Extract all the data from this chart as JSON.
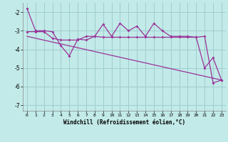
{
  "xlabel": "Windchill (Refroidissement éolien,°C)",
  "background_color": "#c2eae8",
  "grid_color": "#9ecece",
  "line_color": "#993399",
  "xlim": [
    -0.5,
    23.5
  ],
  "ylim": [
    -7.3,
    -1.5
  ],
  "yticks": [
    -7,
    -6,
    -5,
    -4,
    -3,
    -2
  ],
  "xticks": [
    0,
    1,
    2,
    3,
    4,
    5,
    6,
    7,
    8,
    9,
    10,
    11,
    12,
    13,
    14,
    15,
    16,
    17,
    18,
    19,
    20,
    21,
    22,
    23
  ],
  "line1_x": [
    0,
    1,
    2,
    3,
    4,
    5,
    6,
    7,
    8,
    9,
    10,
    11,
    12,
    13,
    14,
    15,
    16,
    17,
    18,
    19,
    20,
    21,
    22,
    23
  ],
  "line1_y": [
    -1.8,
    -3.0,
    -3.0,
    -3.05,
    -3.8,
    -4.35,
    -3.45,
    -3.5,
    -3.3,
    -2.65,
    -3.3,
    -2.6,
    -3.0,
    -2.75,
    -3.3,
    -2.6,
    -3.0,
    -3.3,
    -3.3,
    -3.3,
    -3.35,
    -3.3,
    -5.8,
    -5.65
  ],
  "line2_x": [
    0,
    1,
    2,
    3,
    4,
    5,
    6,
    7,
    8,
    9,
    10,
    11,
    12,
    13,
    14,
    15,
    16,
    17,
    18,
    19,
    20,
    21,
    22,
    23
  ],
  "line2_y": [
    -3.05,
    -3.05,
    -3.05,
    -3.4,
    -3.5,
    -3.5,
    -3.5,
    -3.3,
    -3.3,
    -3.35,
    -3.35,
    -3.35,
    -3.35,
    -3.35,
    -3.35,
    -3.35,
    -3.35,
    -3.35,
    -3.35,
    -3.35,
    -3.35,
    -5.0,
    -4.45,
    -5.65
  ],
  "line3_x": [
    0,
    23
  ],
  "line3_y": [
    -3.3,
    -5.65
  ]
}
